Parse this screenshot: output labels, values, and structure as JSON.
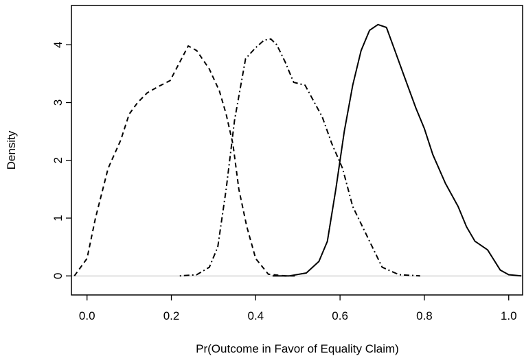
{
  "chart_data": {
    "type": "line",
    "xlabel": "Pr(Outcome in Favor of Equality Claim)",
    "ylabel": "Density",
    "xlim": [
      -0.037,
      1.033
    ],
    "ylim": [
      -0.33,
      4.68
    ],
    "xticks": [
      {
        "value": 0,
        "label": "0.0"
      },
      {
        "value": 0.2,
        "label": "0.2"
      },
      {
        "value": 0.4,
        "label": "0.4"
      },
      {
        "value": 0.6,
        "label": "0.6"
      },
      {
        "value": 0.8,
        "label": "0.8"
      },
      {
        "value": 1,
        "label": "1.0"
      }
    ],
    "yticks": [
      0,
      1,
      2,
      3,
      4
    ],
    "zero_line": true,
    "zero_line_color": "#bebebe",
    "series": [
      {
        "color": "#000000",
        "dash": "dashed",
        "x": [
          -0.03,
          0.0,
          0.02,
          0.05,
          0.08,
          0.1,
          0.12,
          0.143,
          0.17,
          0.197,
          0.22,
          0.24,
          0.26,
          0.29,
          0.314,
          0.33,
          0.346,
          0.36,
          0.379,
          0.4,
          0.43,
          0.47,
          0.5
        ],
        "values": [
          0,
          0.3,
          1.0,
          1.86,
          2.35,
          2.8,
          3.0,
          3.17,
          3.28,
          3.38,
          3.7,
          3.98,
          3.9,
          3.58,
          3.2,
          2.8,
          2.28,
          1.5,
          0.85,
          0.3,
          0.03,
          0,
          0
        ]
      },
      {
        "color": "#000000",
        "dash": "dotdash",
        "x": [
          0.22,
          0.26,
          0.29,
          0.31,
          0.33,
          0.35,
          0.376,
          0.4,
          0.42,
          0.436,
          0.45,
          0.47,
          0.49,
          0.517,
          0.558,
          0.58,
          0.606,
          0.63,
          0.67,
          0.7,
          0.74,
          0.79
        ],
        "values": [
          0,
          0.02,
          0.15,
          0.5,
          1.5,
          2.7,
          3.76,
          3.95,
          4.08,
          4.1,
          4.0,
          3.7,
          3.35,
          3.3,
          2.75,
          2.3,
          1.86,
          1.2,
          0.6,
          0.15,
          0.02,
          0
        ]
      },
      {
        "color": "#000000",
        "dash": "solid",
        "x": [
          0.44,
          0.48,
          0.52,
          0.55,
          0.57,
          0.59,
          0.61,
          0.63,
          0.65,
          0.67,
          0.69,
          0.71,
          0.73,
          0.75,
          0.78,
          0.8,
          0.82,
          0.85,
          0.88,
          0.9,
          0.92,
          0.95,
          0.98,
          1.0,
          1.03
        ],
        "values": [
          0,
          0,
          0.05,
          0.25,
          0.6,
          1.5,
          2.5,
          3.3,
          3.9,
          4.25,
          4.35,
          4.3,
          3.9,
          3.5,
          2.9,
          2.55,
          2.1,
          1.6,
          1.2,
          0.85,
          0.6,
          0.45,
          0.1,
          0.02,
          0
        ]
      }
    ]
  }
}
